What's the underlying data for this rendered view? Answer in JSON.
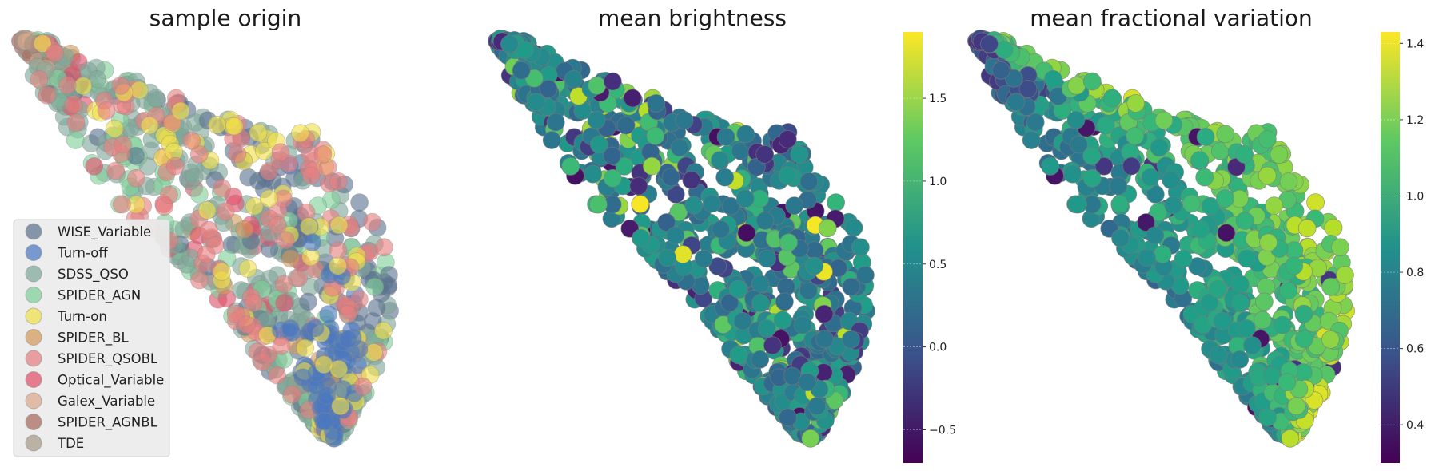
{
  "chart_data": [
    {
      "type": "scatter",
      "title": "sample origin",
      "xlabel": "",
      "ylabel": "",
      "axes": "off",
      "legend": {
        "placement": "lower-left",
        "entries": [
          {
            "label": "WISE_Variable",
            "color": "#5b7390"
          },
          {
            "label": "Turn-off",
            "color": "#4a78c0"
          },
          {
            "label": "SDSS_QSO",
            "color": "#7fa89a"
          },
          {
            "label": "SPIDER_AGN",
            "color": "#7fd09a"
          },
          {
            "label": "Turn-on",
            "color": "#f0e04a"
          },
          {
            "label": "SPIDER_BL",
            "color": "#d49a5a"
          },
          {
            "label": "SPIDER_QSOBL",
            "color": "#e68080"
          },
          {
            "label": "Optical_Variable",
            "color": "#e0506a"
          },
          {
            "label": "Galex_Variable",
            "color": "#dba88a"
          },
          {
            "label": "SPIDER_AGNBL",
            "color": "#a86a5a"
          },
          {
            "label": "TDE",
            "color": "#a89a88"
          }
        ]
      }
    },
    {
      "type": "scatter",
      "title": "mean brightness",
      "colormap": "viridis",
      "colorbar": {
        "min": -0.7,
        "max": 1.9,
        "ticks": [
          "1.5",
          "1.0",
          "0.5",
          "0.0",
          "−0.5"
        ],
        "tick_values": [
          1.5,
          1.0,
          0.5,
          0.0,
          -0.5
        ]
      }
    },
    {
      "type": "scatter",
      "title": "mean fractional variation",
      "colormap": "viridis",
      "colorbar": {
        "min": 0.3,
        "max": 1.43,
        "ticks": [
          "1.4",
          "1.2",
          "1.0",
          "0.8",
          "0.6",
          "0.4"
        ],
        "tick_values": [
          1.4,
          1.2,
          1.0,
          0.8,
          0.6,
          0.4
        ]
      }
    }
  ]
}
